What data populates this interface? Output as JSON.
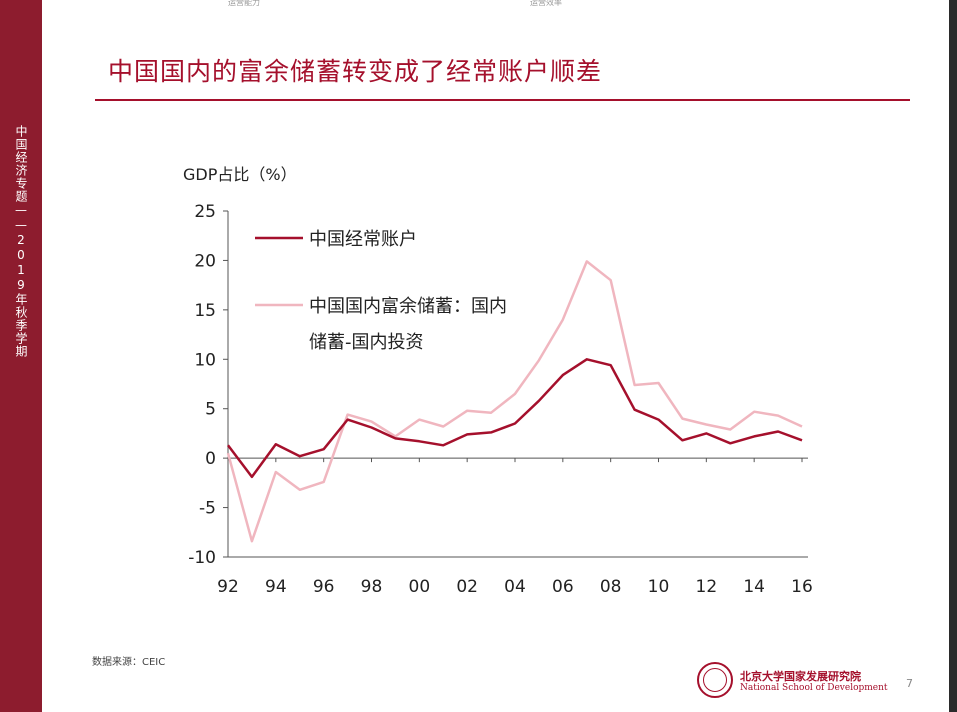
{
  "sidebar": {
    "text": "中国经济专题——2019年秋季学期"
  },
  "top_fragments": [
    "运营能力",
    "运营效率"
  ],
  "title": "中国国内的富余储蓄转变成了经常账户顺差",
  "source": "数据来源：CEIC",
  "footer": {
    "school_cn": "北京大学国家发展研究院",
    "school_en": "National School of Development",
    "page_number": "7"
  },
  "colors": {
    "accent": "#a5102c",
    "series_current_account": "#a5102c",
    "series_surplus_saving": "#f0b6bf",
    "sidebar": "#8d1c2e"
  },
  "chart_data": {
    "type": "line",
    "ylabel": "GDP占比（%）",
    "ylim": [
      -10,
      25
    ],
    "yticks": [
      25,
      20,
      15,
      10,
      5,
      0,
      -5,
      -10
    ],
    "xlim": [
      1992,
      2016
    ],
    "xticks": [
      {
        "value": 1992,
        "label": "92"
      },
      {
        "value": 1994,
        "label": "94"
      },
      {
        "value": 1996,
        "label": "96"
      },
      {
        "value": 1998,
        "label": "98"
      },
      {
        "value": 2000,
        "label": "00"
      },
      {
        "value": 2002,
        "label": "02"
      },
      {
        "value": 2004,
        "label": "04"
      },
      {
        "value": 2006,
        "label": "06"
      },
      {
        "value": 2008,
        "label": "08"
      },
      {
        "value": 2010,
        "label": "10"
      },
      {
        "value": 2012,
        "label": "12"
      },
      {
        "value": 2014,
        "label": "14"
      },
      {
        "value": 2016,
        "label": "16"
      }
    ],
    "x": [
      1992,
      1993,
      1994,
      1995,
      1996,
      1997,
      1998,
      1999,
      2000,
      2001,
      2002,
      2003,
      2004,
      2005,
      2006,
      2007,
      2008,
      2009,
      2010,
      2011,
      2012,
      2013,
      2014,
      2015,
      2016
    ],
    "series": [
      {
        "name": "中国经常账户",
        "values": [
          1.3,
          -1.9,
          1.4,
          0.2,
          0.9,
          3.9,
          3.1,
          2.0,
          1.7,
          1.3,
          2.4,
          2.6,
          3.5,
          5.8,
          8.4,
          10.0,
          9.4,
          4.9,
          3.9,
          1.8,
          2.5,
          1.5,
          2.2,
          2.7,
          1.8
        ]
      },
      {
        "name": "中国国内富余储蓄：国内储蓄-国内投资",
        "legend_lines": [
          "中国国内富余储蓄：国内",
          "储蓄-国内投资"
        ],
        "values": [
          0.5,
          -8.4,
          -1.4,
          -3.2,
          -2.4,
          4.4,
          3.7,
          2.2,
          3.9,
          3.2,
          4.8,
          4.6,
          6.5,
          9.9,
          14.0,
          19.9,
          18.0,
          7.4,
          7.6,
          4.0,
          3.4,
          2.9,
          4.7,
          4.3,
          3.2
        ]
      }
    ],
    "grid": false,
    "legend": "top-left"
  }
}
